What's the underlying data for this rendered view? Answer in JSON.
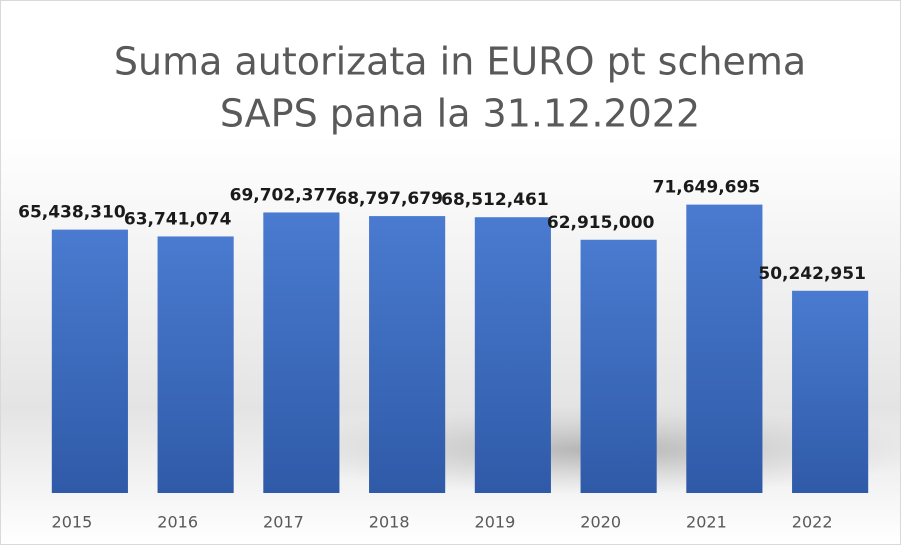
{
  "chart_data": {
    "type": "bar",
    "title": [
      "Suma autorizata in EURO pt schema",
      "SAPS pana la 31.12.2022"
    ],
    "categories": [
      "2015",
      "2016",
      "2017",
      "2018",
      "2019",
      "2020",
      "2021",
      "2022"
    ],
    "values": [
      65438310,
      63741074,
      69702377,
      68797679,
      68512461,
      62915000,
      71649695,
      50242951
    ],
    "value_labels": [
      "65,438,310",
      "63,741,074",
      "69,702,377",
      "68,797,679",
      "68,512,461",
      "62,915,000",
      "71,649,695",
      "50,242,951"
    ],
    "color": "#4472c4",
    "ylim": [
      0,
      80000000
    ]
  }
}
